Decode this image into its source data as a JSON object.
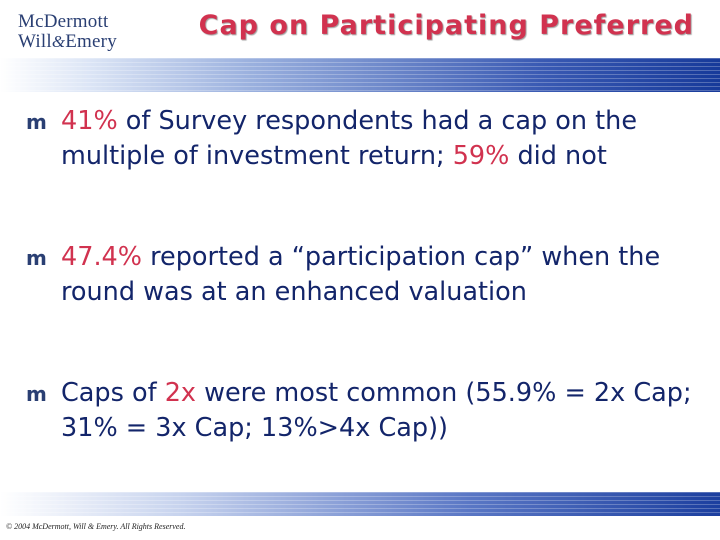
{
  "logo": {
    "line1": "McDermott",
    "line2a": "Will",
    "amp": "&",
    "line2b": "Emery"
  },
  "title": "Cap on Participating Preferred",
  "bullet_marker": "m",
  "bullets": [
    {
      "pct": "41%",
      "text1": " of Survey respondents had a cap on the multiple of investment return; ",
      "pct2": "59%",
      "text2": " did not"
    },
    {
      "pct": "47.4%",
      "text1": " reported a “participation cap” when the round was at an enhanced valuation"
    },
    {
      "pre": "Caps of ",
      "hl": "2x",
      "text1": " were most common (55.9% = 2x Cap; 31% = 3x Cap; 13%>4x Cap))"
    }
  ],
  "footer": {
    "copyright": "© 2004 McDermott, Will & Emery. All Rights Reserved."
  },
  "colors": {
    "accent": "#d1324f",
    "body_text": "#13256a",
    "logo": "#2a3f73",
    "band": "#173a9a"
  }
}
